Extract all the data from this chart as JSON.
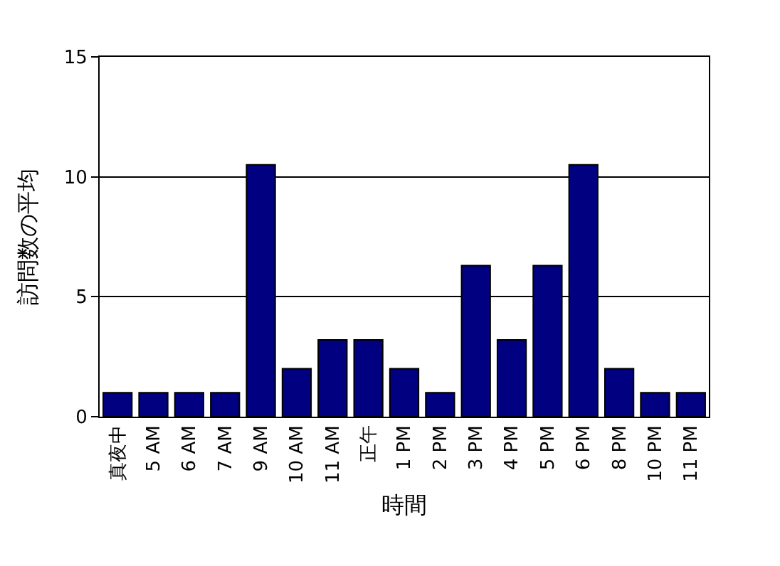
{
  "chart_data": {
    "type": "bar",
    "xlabel": "時間",
    "ylabel": "訪問数の平均",
    "categories": [
      "真夜中",
      "5 AM",
      "6 AM",
      "7 AM",
      "9 AM",
      "10 AM",
      "11 AM",
      "正午",
      "1 PM",
      "2 PM",
      "3 PM",
      "4 PM",
      "5 PM",
      "6 PM",
      "8 PM",
      "10 PM",
      "11 PM"
    ],
    "values": [
      1,
      1,
      1,
      1,
      10.5,
      2,
      3.2,
      3.2,
      2,
      1,
      6.3,
      3.2,
      6.3,
      10.5,
      2,
      1,
      1
    ],
    "color": "#000080",
    "ylim": [
      0,
      15
    ],
    "yticks": [
      0,
      5,
      10,
      15
    ],
    "grid": "y"
  }
}
